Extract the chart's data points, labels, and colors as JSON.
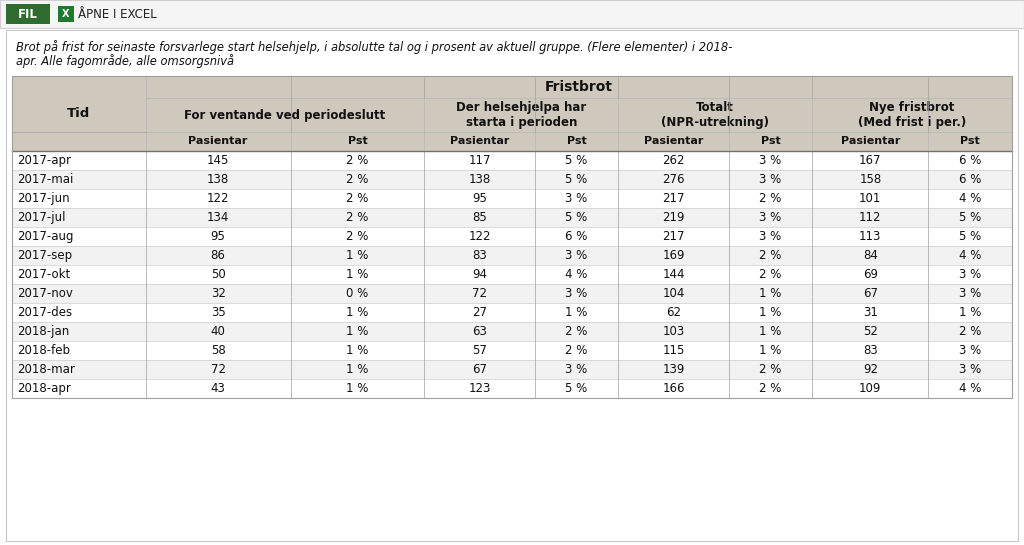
{
  "title_bar_text": "FIL",
  "excel_text": "ÅPNE I EXCEL",
  "subtitle_line1": "Brot på frist for seinaste forsvarlege start helsehjelp, i absolutte tal og i prosent av aktuell gruppe. (Flere elementer) i 2018-",
  "subtitle_line2": "apr. Alle fagområde, alle omsorgsnivå",
  "header_top": "Fristbrot",
  "col_groups": [
    {
      "label": "For ventande ved periodeslutt"
    },
    {
      "label": "Der helsehjelpa har\nstarta i perioden"
    },
    {
      "label": "Totalt\n(NPR-utrekning)"
    },
    {
      "label": "Nye fristbrot\n(Med frist i per.)"
    }
  ],
  "col_headers": [
    "Pasientar",
    "Pst",
    "Pasientar",
    "Pst",
    "Pasientar",
    "Pst",
    "Pasientar",
    "Pst"
  ],
  "row_header": "Tid",
  "rows": [
    [
      "2017-apr",
      "145",
      "2 %",
      "117",
      "5 %",
      "262",
      "3 %",
      "167",
      "6 %"
    ],
    [
      "2017-mai",
      "138",
      "2 %",
      "138",
      "5 %",
      "276",
      "3 %",
      "158",
      "6 %"
    ],
    [
      "2017-jun",
      "122",
      "2 %",
      "95",
      "3 %",
      "217",
      "2 %",
      "101",
      "4 %"
    ],
    [
      "2017-jul",
      "134",
      "2 %",
      "85",
      "5 %",
      "219",
      "3 %",
      "112",
      "5 %"
    ],
    [
      "2017-aug",
      "95",
      "2 %",
      "122",
      "6 %",
      "217",
      "3 %",
      "113",
      "5 %"
    ],
    [
      "2017-sep",
      "86",
      "1 %",
      "83",
      "3 %",
      "169",
      "2 %",
      "84",
      "4 %"
    ],
    [
      "2017-okt",
      "50",
      "1 %",
      "94",
      "4 %",
      "144",
      "2 %",
      "69",
      "3 %"
    ],
    [
      "2017-nov",
      "32",
      "0 %",
      "72",
      "3 %",
      "104",
      "1 %",
      "67",
      "3 %"
    ],
    [
      "2017-des",
      "35",
      "1 %",
      "27",
      "1 %",
      "62",
      "1 %",
      "31",
      "1 %"
    ],
    [
      "2018-jan",
      "40",
      "1 %",
      "63",
      "2 %",
      "103",
      "1 %",
      "52",
      "2 %"
    ],
    [
      "2018-feb",
      "58",
      "1 %",
      "57",
      "2 %",
      "115",
      "1 %",
      "83",
      "3 %"
    ],
    [
      "2018-mar",
      "72",
      "1 %",
      "67",
      "3 %",
      "139",
      "2 %",
      "92",
      "3 %"
    ],
    [
      "2018-apr",
      "43",
      "1 %",
      "123",
      "5 %",
      "166",
      "2 %",
      "109",
      "4 %"
    ]
  ],
  "header_bg": "#cfc8bc",
  "row_bg_even": "#ffffff",
  "row_bg_odd": "#f2f2f2",
  "text_color": "#111111",
  "title_bar_bg": "#2e6b2e",
  "fig_bg": "#ffffff",
  "outer_bg": "#f0eeeb",
  "toolbar_bg": "#f5f5f5",
  "toolbar_border": "#d0d0d0",
  "content_border": "#c8c8c8",
  "table_border": "#a0a0a0"
}
